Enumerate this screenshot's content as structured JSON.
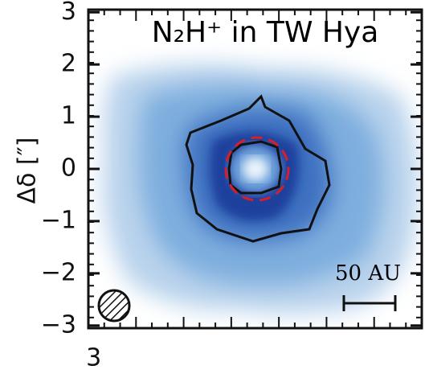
{
  "chart_data": {
    "type": "image-map",
    "title": "N₂H⁺ in TW Hya",
    "y_label": "Δδ [″]",
    "ylim": [
      -3.05,
      3.05
    ],
    "yticks": [
      3,
      2,
      1,
      0,
      {
        "value": -1,
        "label": "−1"
      },
      {
        "value": -2,
        "label": "−2"
      },
      {
        "value": -3,
        "label": "−3"
      }
    ],
    "xlim": [
      3.1,
      -3.1
    ],
    "xticks": [
      3
    ],
    "scale_bar_label": "50 AU"
  }
}
